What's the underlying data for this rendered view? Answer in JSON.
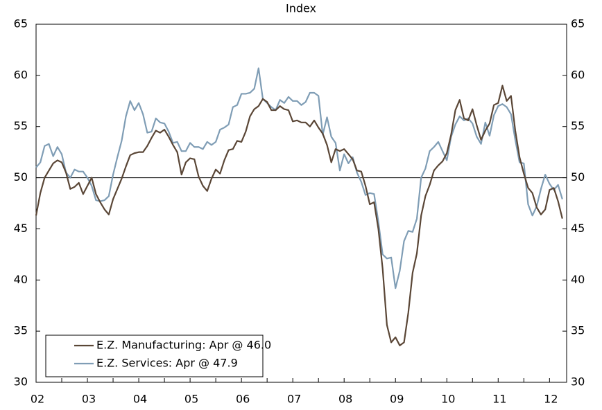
{
  "chart_data": {
    "type": "line",
    "subtitle": "Index",
    "categories": [
      "02",
      null,
      null,
      null,
      null,
      null,
      null,
      null,
      null,
      null,
      null,
      null,
      "03",
      null,
      null,
      null,
      null,
      null,
      null,
      null,
      null,
      null,
      null,
      null,
      "04",
      null,
      null,
      null,
      null,
      null,
      null,
      null,
      null,
      null,
      null,
      null,
      "05",
      null,
      null,
      null,
      null,
      null,
      null,
      null,
      null,
      null,
      null,
      null,
      "06",
      null,
      null,
      null,
      null,
      null,
      null,
      null,
      null,
      null,
      null,
      null,
      "07",
      null,
      null,
      null,
      null,
      null,
      null,
      null,
      null,
      null,
      null,
      null,
      "08",
      null,
      null,
      null,
      null,
      null,
      null,
      null,
      null,
      null,
      null,
      null,
      "09",
      null,
      null,
      null,
      null,
      null,
      null,
      null,
      null,
      null,
      null,
      null,
      "10",
      null,
      null,
      null,
      null,
      null,
      null,
      null,
      null,
      null,
      null,
      null,
      "11",
      null,
      null,
      null,
      null,
      null,
      null,
      null,
      null,
      null,
      null,
      null,
      "12",
      null,
      null,
      null
    ],
    "series": [
      {
        "name": "E.Z. Manufacturing: Apr @ 46.0",
        "color": "#5a4636",
        "values": [
          46.3,
          48.5,
          50.0,
          50.7,
          51.4,
          51.7,
          51.5,
          50.5,
          48.9,
          49.1,
          49.5,
          48.4,
          49.2,
          50.0,
          48.4,
          47.6,
          46.9,
          46.4,
          47.9,
          48.9,
          49.9,
          51.1,
          52.2,
          52.4,
          52.5,
          52.5,
          53.1,
          53.9,
          54.6,
          54.4,
          54.7,
          54.0,
          53.2,
          52.5,
          50.3,
          51.5,
          51.9,
          51.8,
          50.1,
          49.2,
          48.7,
          49.9,
          50.8,
          50.4,
          51.7,
          52.7,
          52.8,
          53.6,
          53.5,
          54.5,
          56.0,
          56.7,
          57.0,
          57.7,
          57.4,
          56.6,
          56.6,
          57.0,
          56.7,
          56.6,
          55.5,
          55.6,
          55.4,
          55.4,
          55.0,
          55.6,
          54.9,
          54.3,
          53.2,
          51.5,
          52.8,
          52.6,
          52.8,
          52.3,
          51.8,
          50.7,
          50.6,
          49.2,
          47.4,
          47.6,
          45.0,
          41.1,
          35.6,
          33.9,
          34.4,
          33.6,
          33.9,
          36.8,
          40.7,
          42.6,
          46.3,
          48.2,
          49.3,
          50.7,
          51.2,
          51.6,
          52.4,
          54.2,
          56.6,
          57.6,
          55.8,
          55.6,
          56.7,
          55.1,
          53.7,
          54.6,
          55.3,
          57.1,
          57.3,
          59.0,
          57.5,
          58.0,
          54.6,
          52.0,
          50.4,
          49.0,
          48.5,
          47.1,
          46.4,
          46.9,
          48.8,
          49.0,
          47.7,
          46.0
        ]
      },
      {
        "name": "E.Z. Services: Apr @ 47.9",
        "color": "#7f9db5",
        "axis": "y2",
        "values": [
          51.0,
          51.5,
          53.1,
          53.3,
          52.1,
          53.0,
          52.3,
          50.5,
          50.0,
          50.8,
          50.6,
          50.6,
          50.0,
          49.2,
          47.8,
          47.7,
          47.8,
          48.2,
          50.3,
          52.0,
          53.6,
          56.0,
          57.5,
          56.6,
          57.3,
          56.2,
          54.4,
          54.5,
          55.8,
          55.4,
          55.3,
          54.5,
          53.4,
          53.5,
          52.6,
          52.6,
          53.4,
          53.0,
          53.0,
          52.8,
          53.5,
          53.2,
          53.5,
          54.7,
          54.9,
          55.2,
          56.9,
          57.1,
          58.2,
          58.2,
          58.3,
          58.7,
          60.7,
          57.7,
          57.3,
          56.9,
          56.6,
          57.6,
          57.3,
          57.9,
          57.5,
          57.5,
          57.1,
          57.4,
          58.3,
          58.3,
          58.0,
          54.2,
          55.9,
          54.0,
          53.4,
          50.7,
          52.3,
          51.4,
          52.0,
          50.5,
          49.6,
          48.3,
          48.5,
          48.4,
          45.7,
          42.5,
          42.1,
          42.2,
          39.2,
          40.9,
          43.8,
          44.8,
          44.7,
          46.0,
          50.0,
          50.9,
          52.6,
          53.0,
          53.5,
          52.6,
          51.7,
          54.0,
          55.2,
          56.0,
          55.6,
          55.8,
          55.3,
          54.0,
          53.3,
          55.4,
          54.1,
          56.1,
          57.0,
          57.2,
          56.9,
          56.2,
          53.7,
          51.5,
          51.4,
          47.4,
          46.3,
          47.2,
          48.9,
          50.3,
          49.4,
          48.8,
          49.3,
          47.9
        ]
      }
    ],
    "ylim": [
      30,
      65
    ],
    "yticks": [
      30,
      35,
      40,
      45,
      50,
      55,
      60,
      65
    ],
    "y2lim": [
      30,
      65
    ],
    "y2ticks": [
      30,
      35,
      40,
      45,
      50,
      55,
      60,
      65
    ],
    "reference_line": 50,
    "legend": "lower left"
  }
}
